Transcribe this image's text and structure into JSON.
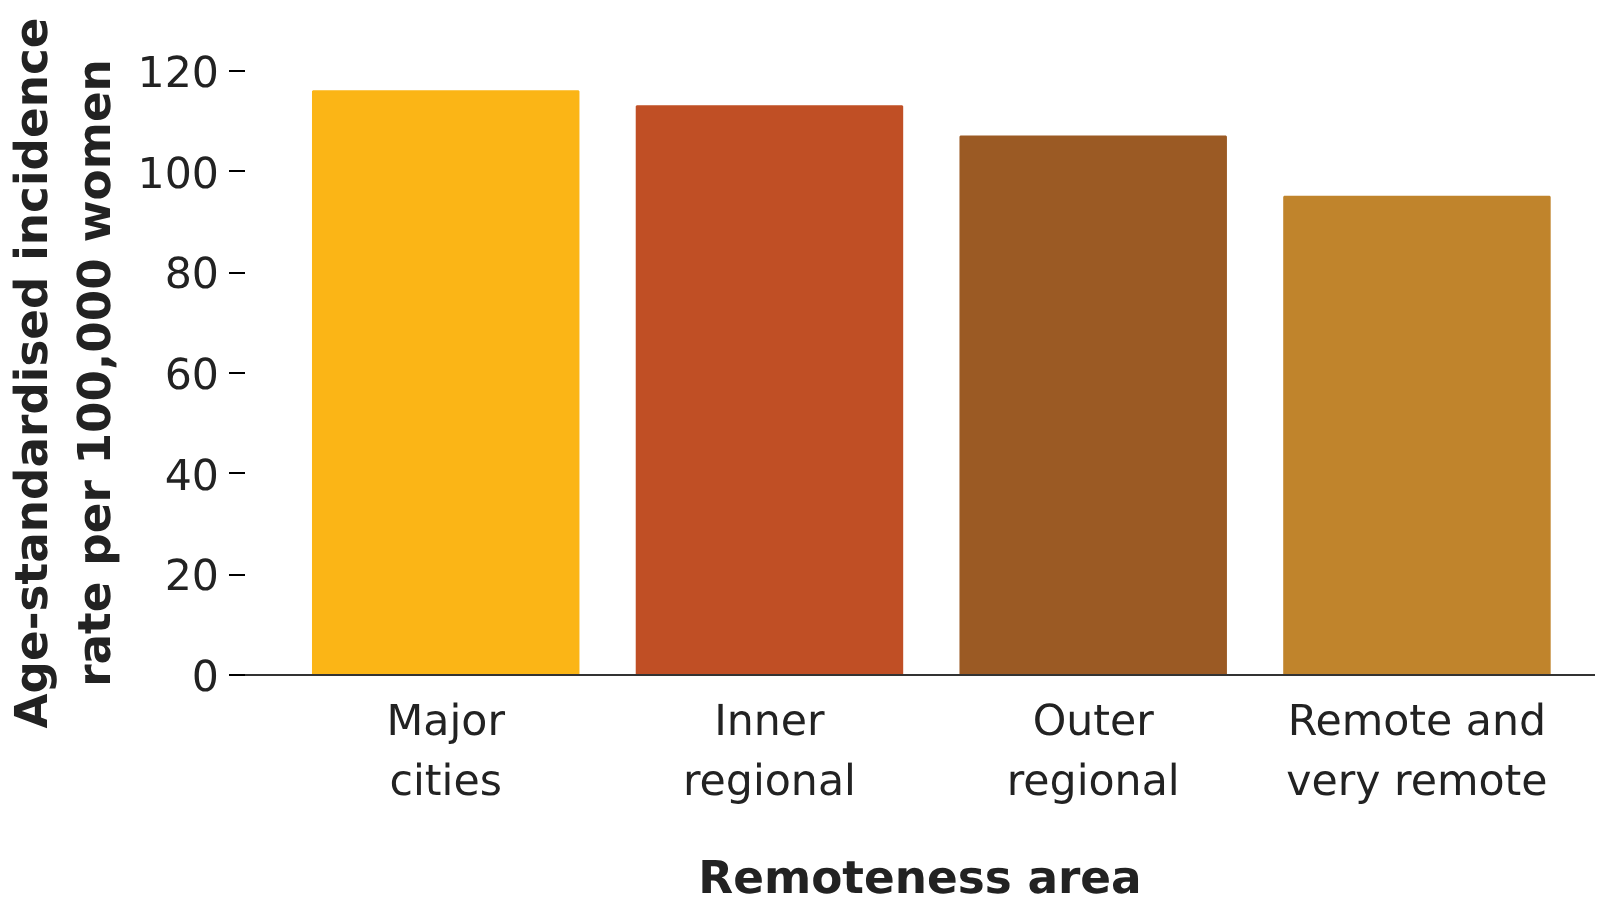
{
  "chart_data": {
    "type": "bar",
    "xlabel": "Remoteness area",
    "ylabel": "Age-standardised incidence\nrate per 100,000 women",
    "categories": [
      "Major\ncities",
      "Inner\nregional",
      "Outer\nregional",
      "Remote and\nvery remote"
    ],
    "values": [
      116,
      113,
      107,
      95
    ],
    "colors": [
      "#fbb516",
      "#c04f25",
      "#9b5a24",
      "#c0842c"
    ],
    "ylim": [
      0,
      120
    ],
    "yticks": [
      0,
      20,
      40,
      60,
      80,
      100,
      120
    ],
    "grid": false
  }
}
